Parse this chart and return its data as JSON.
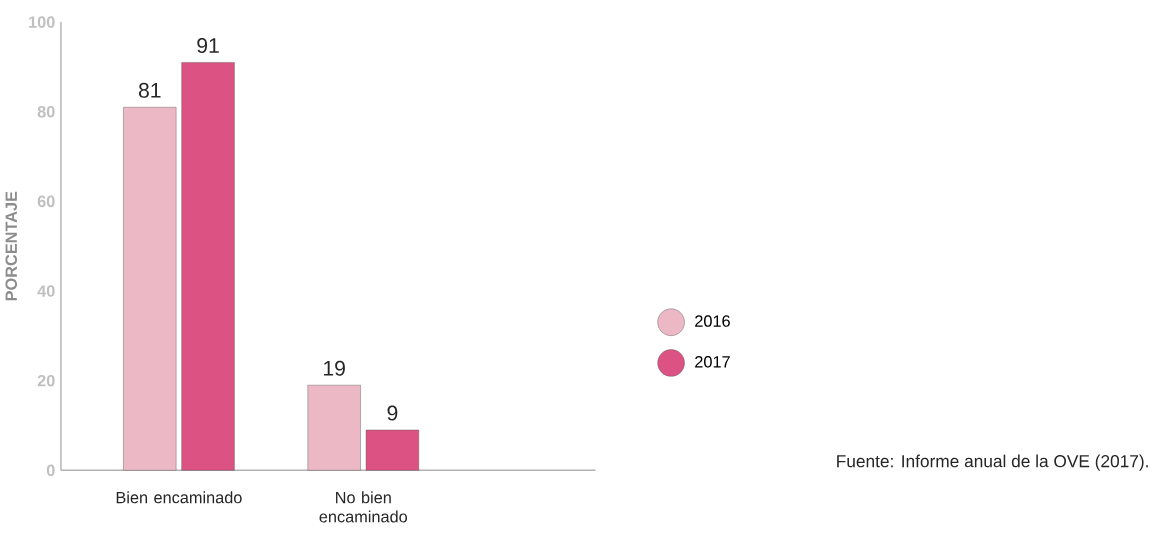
{
  "chart_data": {
    "type": "bar",
    "ylabel": "PORCENTAJE",
    "categories": [
      "Bien encaminado",
      "No bien encaminado"
    ],
    "series": [
      {
        "name": "2016",
        "color": "#ecb8c6",
        "values": [
          81,
          19
        ]
      },
      {
        "name": "2017",
        "color": "#db5283",
        "values": [
          91,
          9
        ]
      }
    ],
    "ylim": [
      0,
      100
    ],
    "yticks": [
      0,
      20,
      40,
      60,
      80,
      100
    ],
    "data_labels": true,
    "legend": "right",
    "grid": false,
    "annotations": [
      "Fuente: Informe anual de la OVE (2017)."
    ]
  }
}
